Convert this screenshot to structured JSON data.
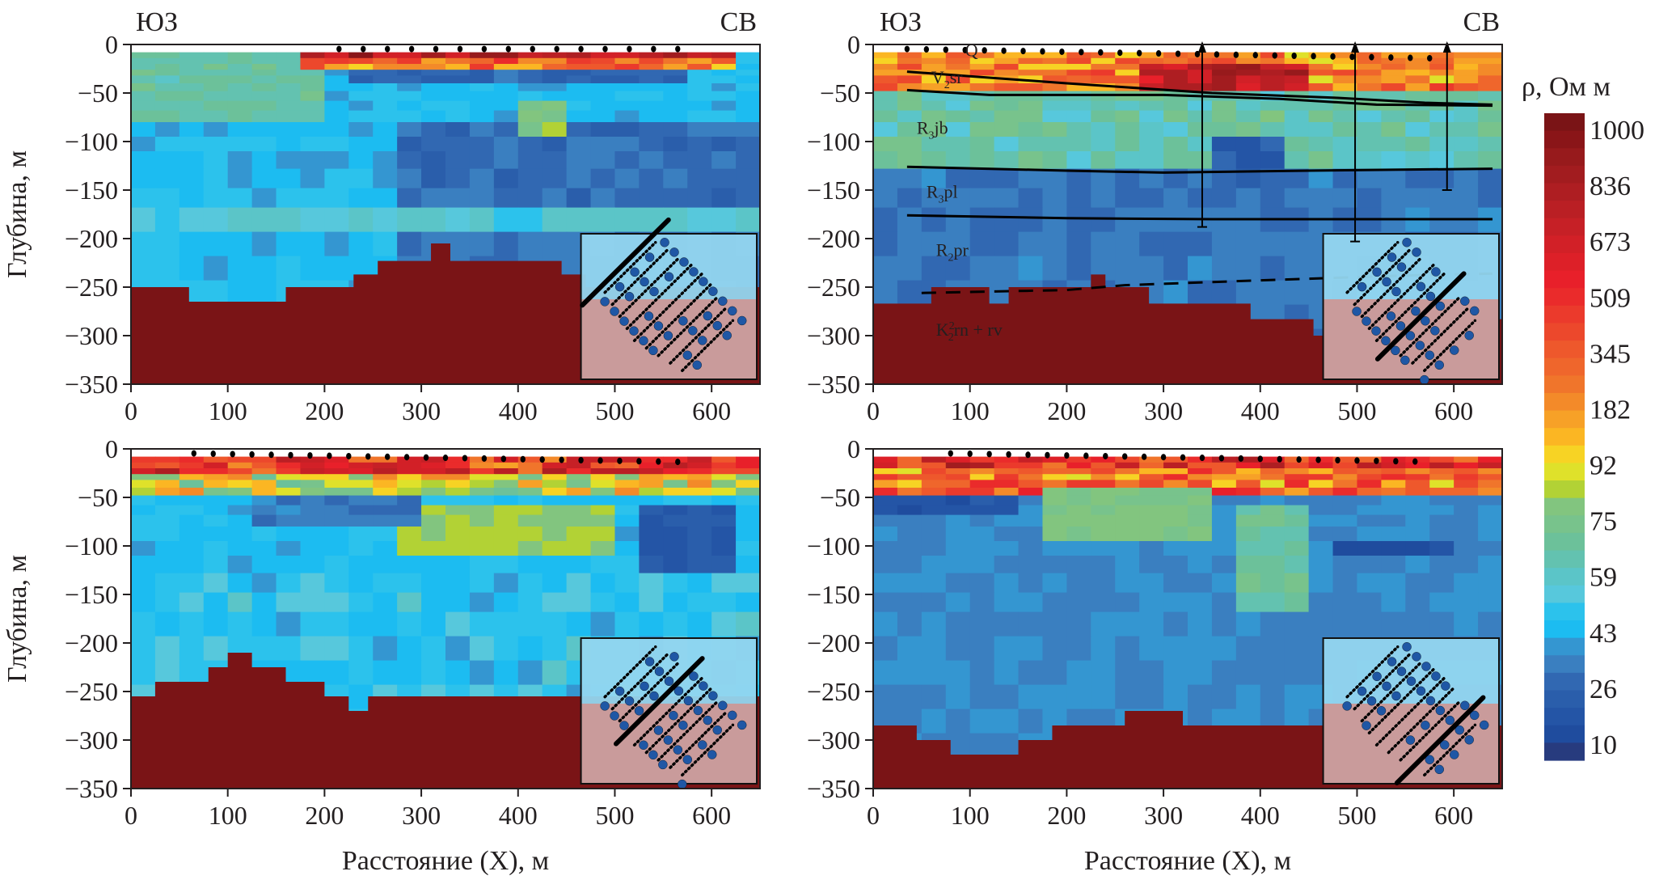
{
  "figure": {
    "colorbar": {
      "title": "ρ, Ом м",
      "ticks": [
        "1000",
        "836",
        "673",
        "509",
        "345",
        "182",
        "92",
        "75",
        "59",
        "43",
        "26",
        "10"
      ],
      "colors_top_to_bottom": [
        "#7a1416",
        "#8a1518",
        "#971a1c",
        "#a21c1f",
        "#ae1e22",
        "#ba1f24",
        "#c62026",
        "#d22027",
        "#dd2028",
        "#e8202a",
        "#ea2b2b",
        "#eb3a2c",
        "#ec482c",
        "#ee582c",
        "#ef662c",
        "#f0752b",
        "#f38a29",
        "#f7a127",
        "#fbb623",
        "#f7d324",
        "#dfe12a",
        "#b2d235",
        "#82c57f",
        "#78c38c",
        "#6cc19a",
        "#63c2b0",
        "#5bc5c8",
        "#57c8dc",
        "#2cc2ec",
        "#1cbcf1",
        "#3496d1",
        "#3a7fc0",
        "#3168b2",
        "#2a5eab",
        "#2455a6",
        "#1f4c9e",
        "#273b7e"
      ]
    },
    "direction_labels": {
      "left": "ЮЗ",
      "right": "СВ"
    },
    "ylabel": "Глубина, м",
    "xlabel": "Расстояние (X), м",
    "inset_colors": {
      "fill_top": "#93d6ef",
      "fill_bottom": "#c99b9b",
      "dot": "#1f57a5"
    }
  },
  "chart_data": [
    {
      "type": "heatmap",
      "panel": "top-left",
      "title_left": "ЮЗ",
      "title_right": "СВ",
      "xlabel": "",
      "ylabel": "Глубина, м",
      "xlim": [
        0,
        650
      ],
      "ylim": [
        -350,
        0
      ],
      "xticks": [
        "0",
        "100",
        "200",
        "300",
        "400",
        "500",
        "600"
      ],
      "yticks": [
        "0",
        "−50",
        "−100",
        "−150",
        "−200",
        "−250",
        "−300",
        "−350"
      ],
      "grid": false,
      "electrodes_x": [
        215,
        240,
        265,
        290,
        315,
        340,
        365,
        390,
        415,
        440,
        465,
        490,
        515,
        540,
        565
      ],
      "basement_depth_steps": [
        [
          0,
          -250
        ],
        [
          60,
          -265
        ],
        [
          160,
          -250
        ],
        [
          230,
          -237
        ],
        [
          255,
          -223
        ],
        [
          310,
          -205
        ],
        [
          330,
          -223
        ],
        [
          420,
          -223
        ],
        [
          445,
          -237
        ],
        [
          470,
          -250
        ],
        [
          650,
          -250
        ]
      ],
      "basement_label": "",
      "inset": "stations map, thick line = profile, position NW edge"
    },
    {
      "type": "heatmap",
      "panel": "top-right",
      "title_left": "ЮЗ",
      "title_right": "СВ",
      "xlabel": "",
      "ylabel": "",
      "xlim": [
        0,
        650
      ],
      "ylim": [
        -350,
        0
      ],
      "xticks": [
        "0",
        "100",
        "200",
        "300",
        "400",
        "500",
        "600"
      ],
      "yticks": [
        "0",
        "−50",
        "−100",
        "−150",
        "−200",
        "−250",
        "−300",
        "−350"
      ],
      "grid": false,
      "electrodes_x": [
        35,
        55,
        75,
        95,
        115,
        135,
        155,
        175,
        195,
        215,
        235,
        255,
        275,
        295,
        315,
        335,
        355,
        375,
        395,
        415,
        435,
        455,
        475,
        495,
        515,
        535,
        555,
        575
      ],
      "boreholes": [
        {
          "x": 340,
          "bottom": -188
        },
        {
          "x": 498,
          "bottom": -203
        },
        {
          "x": 593,
          "bottom": -150
        }
      ],
      "horizons": [
        {
          "points": [
            [
              35,
              -28
            ],
            [
              200,
              -40
            ],
            [
              350,
              -50
            ],
            [
              480,
              -55
            ],
            [
              570,
              -60
            ],
            [
              640,
              -62
            ]
          ]
        },
        {
          "points": [
            [
              35,
              -47
            ],
            [
              120,
              -52
            ],
            [
              300,
              -52
            ],
            [
              420,
              -56
            ],
            [
              520,
              -62
            ],
            [
              640,
              -63
            ]
          ]
        },
        {
          "points": [
            [
              35,
              -126
            ],
            [
              200,
              -130
            ],
            [
              300,
              -132
            ],
            [
              450,
              -130
            ],
            [
              640,
              -128
            ]
          ]
        },
        {
          "points": [
            [
              35,
              -176
            ],
            [
              200,
              -179
            ],
            [
              350,
              -180
            ],
            [
              500,
              -180
            ],
            [
              640,
              -180
            ]
          ]
        }
      ],
      "dashed_horizon": {
        "points": [
          [
            50,
            -256
          ],
          [
            200,
            -253
          ],
          [
            260,
            -248
          ],
          [
            400,
            -243
          ],
          [
            550,
            -238
          ],
          [
            640,
            -236
          ]
        ]
      },
      "basement_depth_steps": [
        [
          0,
          -267
        ],
        [
          60,
          -250
        ],
        [
          120,
          -267
        ],
        [
          140,
          -250
        ],
        [
          220,
          -250
        ],
        [
          225,
          -237
        ],
        [
          240,
          -250
        ],
        [
          280,
          -250
        ],
        [
          285,
          -267
        ],
        [
          365,
          -267
        ],
        [
          390,
          -283
        ],
        [
          440,
          -283
        ],
        [
          455,
          -300
        ],
        [
          465,
          -300
        ],
        [
          470,
          -283
        ],
        [
          650,
          -283
        ]
      ],
      "layer_labels": [
        "Q",
        "V2sr",
        "R3jb",
        "R3pl",
        "R2pr",
        "K22rn + rv"
      ],
      "inset": "stations map, thick line = profile, position SE diagonal"
    },
    {
      "type": "heatmap",
      "panel": "bottom-left",
      "xlabel": "Расстояние (X), м",
      "ylabel": "Глубина, м",
      "xlim": [
        0,
        650
      ],
      "ylim": [
        -350,
        0
      ],
      "xticks": [
        "0",
        "100",
        "200",
        "300",
        "400",
        "500",
        "600"
      ],
      "yticks": [
        "0",
        "−50",
        "−100",
        "−150",
        "−200",
        "−250",
        "−300",
        "−350"
      ],
      "grid": false,
      "electrodes_x": [
        65,
        85,
        105,
        125,
        145,
        165,
        185,
        205,
        225,
        245,
        265,
        285,
        305,
        325,
        345,
        365,
        385,
        405,
        425,
        445,
        465,
        485,
        505,
        525,
        545,
        565
      ],
      "basement_depth_steps": [
        [
          0,
          -255
        ],
        [
          25,
          -240
        ],
        [
          80,
          -225
        ],
        [
          100,
          -210
        ],
        [
          125,
          -225
        ],
        [
          160,
          -240
        ],
        [
          200,
          -255
        ],
        [
          225,
          -270
        ],
        [
          245,
          -255
        ],
        [
          650,
          -255
        ]
      ],
      "inset": "stations map, thick line = profile, position center diagonal"
    },
    {
      "type": "heatmap",
      "panel": "bottom-right",
      "xlabel": "Расстояние (X), м",
      "ylabel": "",
      "xlim": [
        0,
        650
      ],
      "ylim": [
        -350,
        0
      ],
      "xticks": [
        "0",
        "100",
        "200",
        "300",
        "400",
        "500",
        "600"
      ],
      "yticks": [
        "0",
        "−50",
        "−100",
        "−150",
        "−200",
        "−250",
        "−300",
        "−350"
      ],
      "grid": false,
      "electrodes_x": [
        80,
        100,
        120,
        140,
        160,
        180,
        200,
        220,
        240,
        260,
        280,
        300,
        320,
        340,
        360,
        380,
        400,
        420,
        440,
        460,
        480,
        500,
        520,
        540,
        560
      ],
      "basement_depth_steps": [
        [
          0,
          -285
        ],
        [
          45,
          -300
        ],
        [
          80,
          -315
        ],
        [
          150,
          -300
        ],
        [
          185,
          -285
        ],
        [
          260,
          -270
        ],
        [
          320,
          -285
        ],
        [
          650,
          -285
        ]
      ],
      "inset": "stations map, thick line = profile, position SE offset diagonal"
    }
  ]
}
